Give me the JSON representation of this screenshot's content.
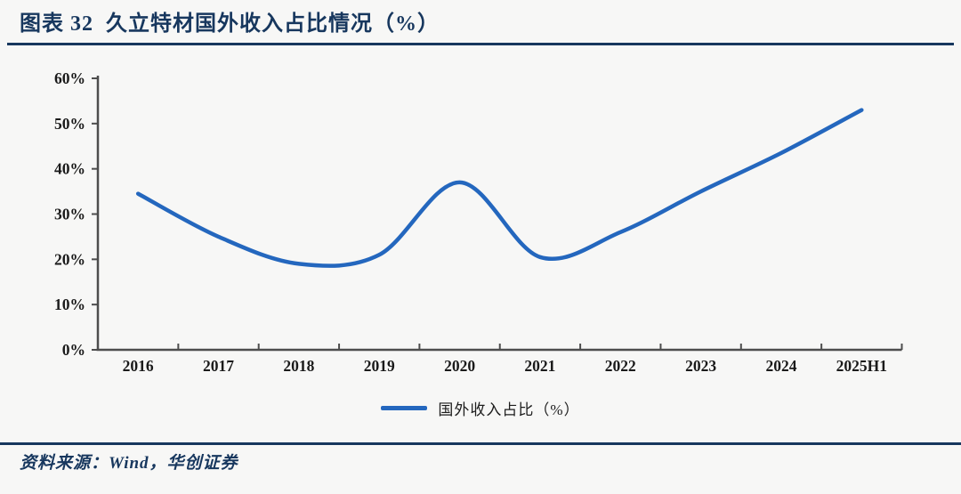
{
  "page": {
    "background": "#f7f7f6",
    "accent_navy": "#17375e",
    "axis_color": "#4d4d4d",
    "tick_label_color": "#1a1a1a"
  },
  "header": {
    "title": "图表 32  久立特材国外收入占比情况（%）"
  },
  "legend": {
    "label": "国外收入占比（%）",
    "line_color": "#2467be"
  },
  "footer": {
    "source": "资料来源：Wind，华创证券"
  },
  "chart_data": {
    "type": "line",
    "title": "久立特材国外收入占比情况（%）",
    "categories": [
      "2016",
      "2017",
      "2018",
      "2019",
      "2020",
      "2021",
      "2022",
      "2023",
      "2024",
      "2025H1"
    ],
    "series": [
      {
        "name": "国外收入占比（%）",
        "color": "#2467be",
        "values": [
          34.5,
          25,
          19,
          21,
          37,
          20.5,
          26,
          35,
          43.5,
          53
        ]
      }
    ],
    "xlabel": "",
    "ylabel": "",
    "ylim": [
      0,
      60
    ],
    "ytick_step": 10,
    "yticks": [
      "0%",
      "10%",
      "20%",
      "30%",
      "40%",
      "50%",
      "60%"
    ],
    "grid": false,
    "smooth": true,
    "legend_position": "bottom"
  }
}
